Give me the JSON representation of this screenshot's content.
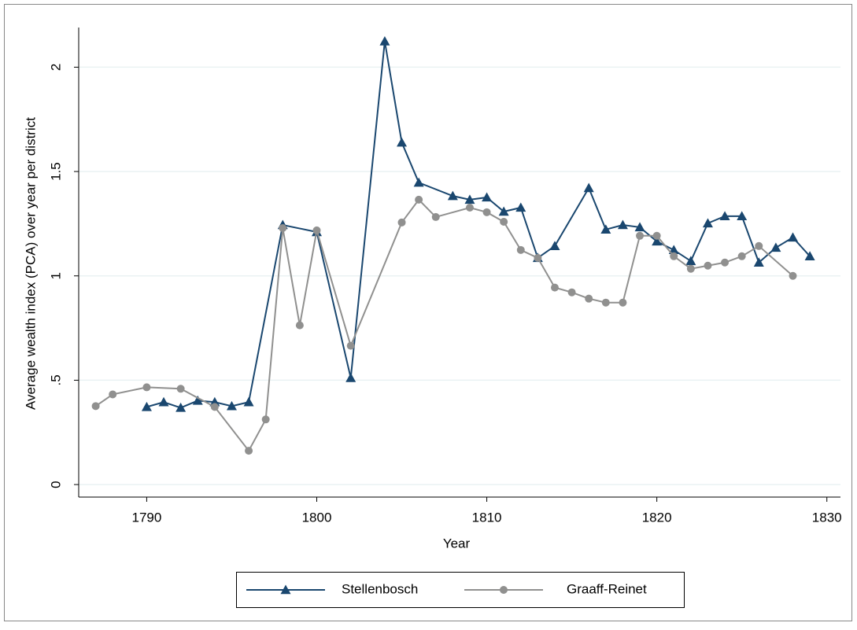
{
  "chart_data": {
    "type": "line",
    "x_label": "Year",
    "y_label": "Average wealth index (PCA) over year per district",
    "xlim": [
      1786,
      1830.8
    ],
    "ylim": [
      -0.06,
      2.19
    ],
    "xticks": [
      1790,
      1800,
      1810,
      1820,
      1830
    ],
    "yticks": [
      0,
      {
        "value": 0.5,
        "label": ".5"
      },
      1,
      1.5,
      2
    ],
    "grid": true,
    "legend": "bottom",
    "series": [
      {
        "name": "Stellenbosch",
        "color": "#1a476f",
        "marker": "triangle",
        "x": [
          1790,
          1791,
          1792,
          1793,
          1794,
          1795,
          1796,
          1798,
          1800,
          1802,
          1804,
          1805,
          1806,
          1808,
          1809,
          1810,
          1811,
          1812,
          1813,
          1814,
          1816,
          1817,
          1818,
          1819,
          1820,
          1821,
          1822,
          1823,
          1824,
          1825,
          1826,
          1827,
          1828,
          1829
        ],
        "values": [
          0.372,
          0.395,
          0.368,
          0.402,
          0.395,
          0.376,
          0.395,
          1.244,
          1.21,
          0.511,
          2.124,
          1.639,
          1.447,
          1.383,
          1.365,
          1.376,
          1.308,
          1.327,
          1.086,
          1.143,
          1.421,
          1.222,
          1.244,
          1.233,
          1.165,
          1.124,
          1.071,
          1.252,
          1.286,
          1.286,
          1.064,
          1.135,
          1.184,
          1.094
        ]
      },
      {
        "name": "Graaff-Reinet",
        "color": "#90908f",
        "marker": "circle",
        "x": [
          1787,
          1788,
          1790,
          1792,
          1794,
          1796,
          1797,
          1798,
          1799,
          1800,
          1802,
          1805,
          1806,
          1807,
          1809,
          1810,
          1811,
          1812,
          1813,
          1814,
          1815,
          1816,
          1817,
          1818,
          1819,
          1820,
          1821,
          1822,
          1823,
          1824,
          1825,
          1826,
          1828
        ],
        "values": [
          0.376,
          0.432,
          0.466,
          0.459,
          0.372,
          0.162,
          0.312,
          1.229,
          0.763,
          1.218,
          0.665,
          1.256,
          1.365,
          1.282,
          1.327,
          1.305,
          1.259,
          1.124,
          1.086,
          0.944,
          0.921,
          0.891,
          0.872,
          0.872,
          1.192,
          1.192,
          1.094,
          1.034,
          1.049,
          1.064,
          1.094,
          1.143,
          1.0
        ]
      }
    ]
  }
}
